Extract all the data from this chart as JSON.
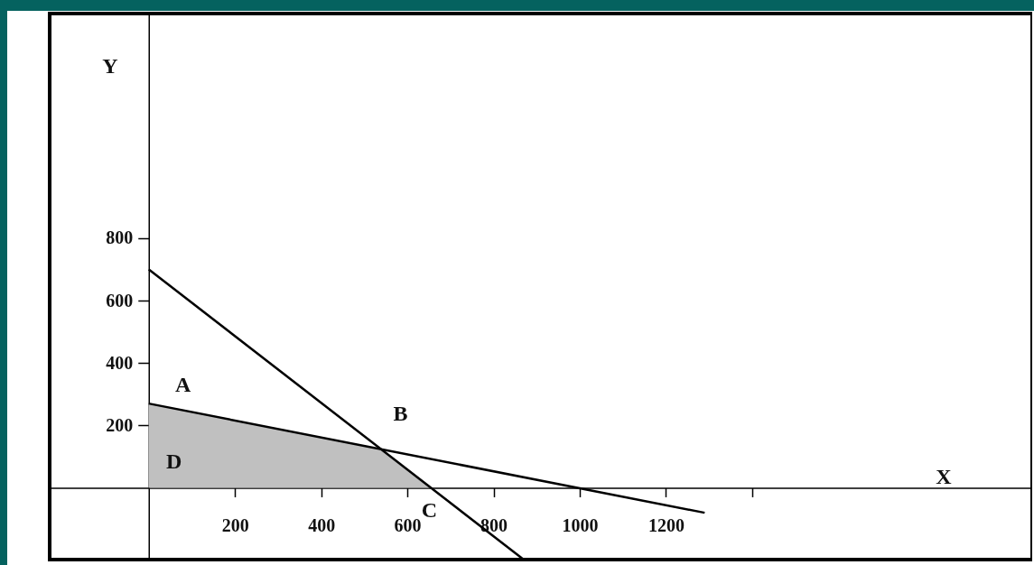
{
  "chart_data": {
    "type": "line",
    "xlabel": "X",
    "ylabel": "Y",
    "xlim": [
      -230,
      2050
    ],
    "ylim": [
      -230,
      1520
    ],
    "xticks": [
      200,
      400,
      600,
      800,
      1000,
      1200,
      {
        "value": 1400,
        "label": null
      }
    ],
    "yticks": [
      200,
      400,
      600,
      800
    ],
    "series": [
      {
        "type": "area",
        "color": "#c0c0c0",
        "x": [
          0,
          538,
          655
        ],
        "values": [
          270,
          125,
          0
        ]
      },
      {
        "color": "#000000",
        "x": [
          0,
          870
        ],
        "values": [
          700,
          -230
        ]
      },
      {
        "color": "#000000",
        "x": [
          0,
          1290
        ],
        "values": [
          270,
          -80
        ]
      }
    ],
    "annotations": [
      {
        "text": "A",
        "x": 0,
        "y": 270
      },
      {
        "text": "B",
        "x": 538,
        "y": 125
      },
      {
        "text": "C",
        "x": 655,
        "y": 0
      },
      {
        "text": "D",
        "x": 0,
        "y": 0
      }
    ]
  }
}
